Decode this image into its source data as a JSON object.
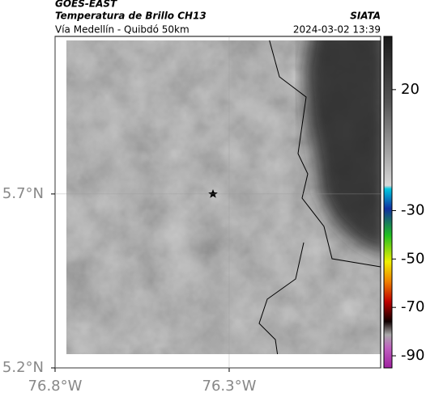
{
  "header": {
    "title": "GOES-EAST",
    "subtitle": "Temperatura de Brillo CH13",
    "source": "SIATA",
    "region": "Vía Medellín - Quibdó 50km",
    "timestamp": "2024-03-02 13:39"
  },
  "map": {
    "xlim": [
      -76.8,
      -75.865
    ],
    "ylim": [
      5.2,
      6.153
    ],
    "xticks": [
      {
        "value": -76.8,
        "label": "76.8°W"
      },
      {
        "value": -76.3,
        "label": "76.3°W"
      }
    ],
    "yticks": [
      {
        "value": 5.2,
        "label": "5.2°N"
      },
      {
        "value": 5.7,
        "label": "5.7°N"
      }
    ],
    "grid": true
  },
  "colorbar": {
    "lim": [
      -95,
      42
    ],
    "ticks": [
      20,
      -30,
      -50,
      -70,
      -90
    ]
  }
}
